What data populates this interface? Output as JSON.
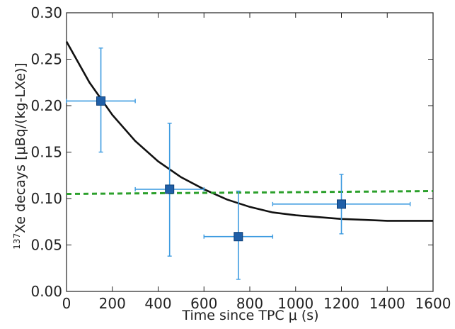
{
  "chart_data": {
    "type": "scatter",
    "title": "",
    "xlabel": "Time since TPC μ (s)",
    "ylabel": {
      "superscript": "137",
      "text": "Xe decays [μBq/(kg-LXe)]"
    },
    "xlim": [
      0,
      1600
    ],
    "ylim": [
      0.0,
      0.3
    ],
    "x_ticks": [
      "0",
      "200",
      "400",
      "600",
      "800",
      "1000",
      "1200",
      "1400",
      "1600"
    ],
    "y_ticks": [
      "0.00",
      "0.05",
      "0.10",
      "0.15",
      "0.20",
      "0.25",
      "0.30"
    ],
    "grid": false,
    "legend": "none",
    "series": [
      {
        "kind": "points_with_errorbars",
        "color": "#1f5fa8",
        "errorbar_color": "#3d9be0",
        "marker": "square",
        "points": [
          {
            "x": 150,
            "y": 0.205,
            "xerr": 150,
            "yerr_low": 0.055,
            "yerr_high": 0.057
          },
          {
            "x": 450,
            "y": 0.11,
            "xerr": 150,
            "yerr_low": 0.072,
            "yerr_high": 0.071
          },
          {
            "x": 750,
            "y": 0.059,
            "xerr": 150,
            "yerr_low": 0.046,
            "yerr_high": 0.049
          },
          {
            "x": 1200,
            "y": 0.094,
            "xerr": 300,
            "yerr_low": 0.032,
            "yerr_high": 0.032
          }
        ]
      },
      {
        "kind": "exponential_fit",
        "color": "#111111",
        "line_style": "solid",
        "x": [
          0,
          100,
          200,
          300,
          400,
          500,
          600,
          700,
          800,
          900,
          1000,
          1100,
          1200,
          1300,
          1400,
          1500,
          1600
        ],
        "y": [
          0.269,
          0.225,
          0.19,
          0.162,
          0.14,
          0.123,
          0.11,
          0.099,
          0.091,
          0.085,
          0.082,
          0.08,
          0.078,
          0.077,
          0.076,
          0.076,
          0.076
        ]
      },
      {
        "kind": "constant_fit",
        "color": "#2ca02c",
        "line_style": "dashed",
        "x": [
          0,
          1600
        ],
        "y": [
          0.105,
          0.108
        ]
      }
    ]
  }
}
